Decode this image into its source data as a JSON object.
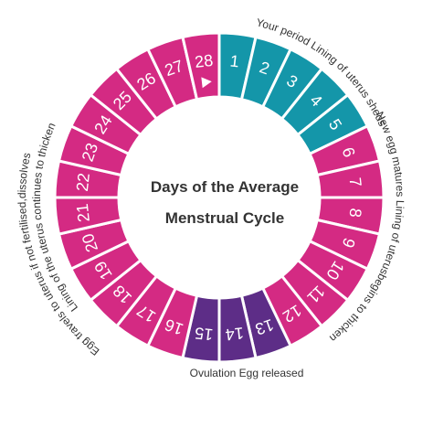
{
  "title": {
    "line1": "Days of the Average",
    "line2": "Menstrual Cycle"
  },
  "segments": [
    {
      "label": "1",
      "color": "#1496a9"
    },
    {
      "label": "2",
      "color": "#1496a9"
    },
    {
      "label": "3",
      "color": "#1496a9"
    },
    {
      "label": "4",
      "color": "#1496a9"
    },
    {
      "label": "5",
      "color": "#1496a9"
    },
    {
      "label": "6",
      "color": "#d42a83"
    },
    {
      "label": "7",
      "color": "#d42a83"
    },
    {
      "label": "8",
      "color": "#d42a83"
    },
    {
      "label": "9",
      "color": "#d42a83"
    },
    {
      "label": "10",
      "color": "#d42a83"
    },
    {
      "label": "11",
      "color": "#d42a83"
    },
    {
      "label": "12",
      "color": "#d42a83"
    },
    {
      "label": "13",
      "color": "#5d2d87"
    },
    {
      "label": "14",
      "color": "#5d2d87"
    },
    {
      "label": "15",
      "color": "#5d2d87"
    },
    {
      "label": "16",
      "color": "#d42a83"
    },
    {
      "label": "17",
      "color": "#d42a83"
    },
    {
      "label": "18",
      "color": "#d42a83"
    },
    {
      "label": "19",
      "color": "#d42a83"
    },
    {
      "label": "20",
      "color": "#d42a83"
    },
    {
      "label": "21",
      "color": "#d42a83"
    },
    {
      "label": "22",
      "color": "#d42a83"
    },
    {
      "label": "23",
      "color": "#d42a83"
    },
    {
      "label": "24",
      "color": "#d42a83"
    },
    {
      "label": "25",
      "color": "#d42a83"
    },
    {
      "label": "26",
      "color": "#d42a83"
    },
    {
      "label": "27",
      "color": "#d42a83"
    },
    {
      "label": "28",
      "color": "#d42a83"
    }
  ],
  "phases": {
    "period": "Your period Lining of uterus sheds",
    "follicular": "New egg matures Lining of uterusbegins to thicken",
    "ovulation": "Ovulation Egg released",
    "luteal_outer": "Egg travels to uterus if not fertilised,dissolves",
    "luteal_inner": "Lining of the uterus continues to thicken"
  }
}
